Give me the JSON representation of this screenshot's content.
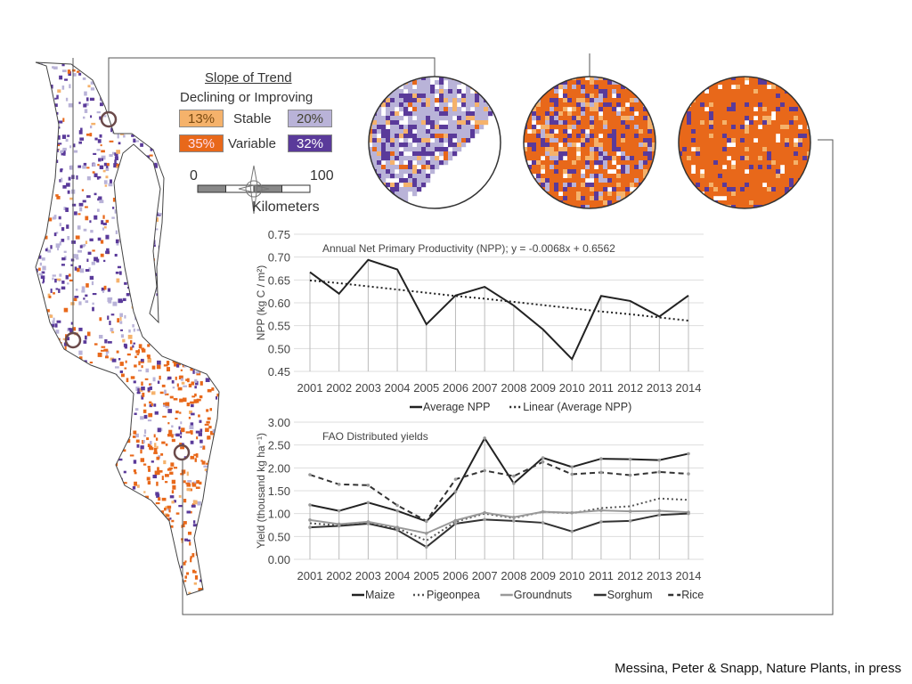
{
  "legend": {
    "title": "Slope of Trend",
    "subtitle": "Declining or Improving",
    "stable_label": "Stable",
    "variable_label": "Variable",
    "stable_declining": "13%",
    "stable_improving": "20%",
    "variable_declining": "35%",
    "variable_improving": "32%",
    "colors": {
      "stable_declining": "#f5b26b",
      "stable_improving": "#b9b3d8",
      "variable_declining": "#e8681a",
      "variable_improving": "#5a3a9a"
    }
  },
  "scale_bar": {
    "min": "0",
    "max": "100",
    "unit": "Kilometers",
    "icon": "compass-rose-icon"
  },
  "citation": "Messina, Peter & Snapp, Nature Plants, in press",
  "chart_data": [
    {
      "type": "line",
      "title": "Annual Net Primary Productivity (NPP); y = -0.0068x + 0.6562",
      "ylabel": "NPP (kg C / m²)",
      "xlabel": "",
      "ylim": [
        0.45,
        0.75
      ],
      "yticks": [
        "0.45",
        "0.50",
        "0.55",
        "0.60",
        "0.65",
        "0.70",
        "0.75"
      ],
      "categories": [
        "2001",
        "2002",
        "2003",
        "2004",
        "2005",
        "2006",
        "2007",
        "2008",
        "2009",
        "2010",
        "2011",
        "2012",
        "2013",
        "2014"
      ],
      "grid": true,
      "legend_position": "bottom",
      "series": [
        {
          "name": "Average NPP",
          "style": "solid",
          "values": [
            0.667,
            0.62,
            0.694,
            0.673,
            0.553,
            0.616,
            0.635,
            0.594,
            0.542,
            0.477,
            0.615,
            0.604,
            0.57,
            0.616
          ]
        },
        {
          "name": "Linear (Average NPP)",
          "style": "dotted",
          "values": [
            0.649,
            0.643,
            0.636,
            0.629,
            0.622,
            0.615,
            0.609,
            0.602,
            0.595,
            0.588,
            0.581,
            0.575,
            0.568,
            0.561
          ]
        }
      ]
    },
    {
      "type": "line",
      "title": "FAO Distributed yields",
      "ylabel": "Yield (thousand kg ha⁻¹)",
      "xlabel": "",
      "ylim": [
        0,
        3
      ],
      "yticks": [
        "0.00",
        "0.50",
        "1.00",
        "1.50",
        "2.00",
        "2.50",
        "3.00"
      ],
      "categories": [
        "2001",
        "2002",
        "2003",
        "2004",
        "2005",
        "2006",
        "2007",
        "2008",
        "2009",
        "2010",
        "2011",
        "2012",
        "2013",
        "2014"
      ],
      "grid": true,
      "legend_position": "bottom",
      "series": [
        {
          "name": "Maize",
          "style": "solid",
          "color": "#222222",
          "values": [
            1.19,
            1.06,
            1.24,
            1.06,
            0.83,
            1.48,
            2.65,
            1.66,
            2.22,
            2.02,
            2.2,
            2.19,
            2.17,
            2.31
          ]
        },
        {
          "name": "Pigeonpea",
          "style": "dotted",
          "color": "#555555",
          "values": [
            0.79,
            0.74,
            0.8,
            0.68,
            0.41,
            0.82,
            1.0,
            0.9,
            1.04,
            1.01,
            1.12,
            1.16,
            1.33,
            1.3
          ]
        },
        {
          "name": "Groundnuts",
          "style": "solid",
          "color": "#999999",
          "values": [
            0.86,
            0.77,
            0.82,
            0.7,
            0.57,
            0.85,
            1.02,
            0.92,
            1.04,
            1.02,
            1.07,
            1.05,
            1.06,
            1.03
          ]
        },
        {
          "name": "Sorghum",
          "style": "solid-marker",
          "color": "#333333",
          "values": [
            0.7,
            0.73,
            0.78,
            0.64,
            0.27,
            0.78,
            0.87,
            0.84,
            0.8,
            0.61,
            0.82,
            0.84,
            0.97,
            1.0
          ]
        },
        {
          "name": "Rice",
          "style": "dashed",
          "color": "#333333",
          "values": [
            1.85,
            1.64,
            1.62,
            1.18,
            0.84,
            1.75,
            1.94,
            1.82,
            2.13,
            1.86,
            1.9,
            1.84,
            1.91,
            1.87
          ]
        }
      ]
    }
  ]
}
